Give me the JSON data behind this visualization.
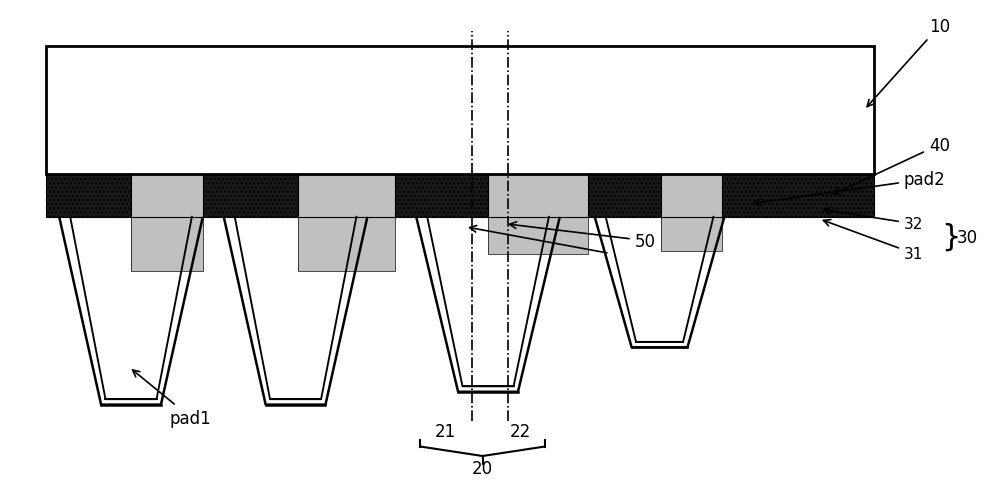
{
  "bg_color": "#ffffff",
  "line_color": "#000000",
  "figure_width": 10.0,
  "figure_height": 4.81
}
